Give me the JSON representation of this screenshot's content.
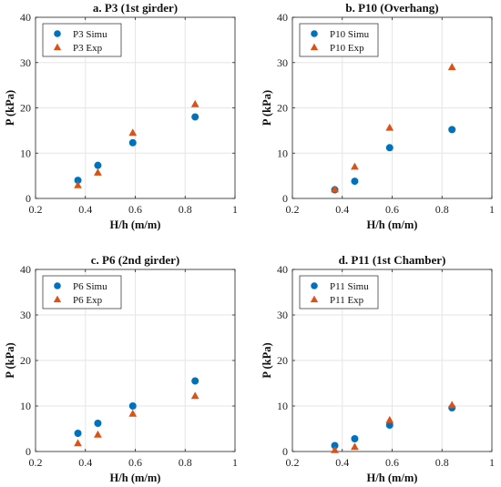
{
  "colors": {
    "simu": "#0072BD",
    "exp": "#D95319",
    "grid": "#e6e6e6",
    "axis": "#262626"
  },
  "chart_data": [
    {
      "type": "scatter",
      "title": "a. P3 (1st girder)",
      "xlabel": "H/h (m/m)",
      "ylabel": "P (kPa)",
      "xlim": [
        0.2,
        1
      ],
      "ylim": [
        0,
        40
      ],
      "xticks": [
        "0.2",
        "0.4",
        "0.6",
        "0.8",
        "1"
      ],
      "yticks": [
        "0",
        "10",
        "20",
        "30",
        "40"
      ],
      "grid": true,
      "legend_position": "top-left",
      "series": [
        {
          "name": "P3 Simu",
          "marker": "circle",
          "points": [
            [
              0.37,
              4.0
            ],
            [
              0.45,
              7.3
            ],
            [
              0.59,
              12.3
            ],
            [
              0.84,
              18.0
            ]
          ]
        },
        {
          "name": "P3 Exp",
          "marker": "triangle",
          "points": [
            [
              0.37,
              2.9
            ],
            [
              0.45,
              5.7
            ],
            [
              0.59,
              14.5
            ],
            [
              0.84,
              20.8
            ]
          ]
        }
      ]
    },
    {
      "type": "scatter",
      "title": "b. P10 (Overhang)",
      "xlabel": "H/h (m/m)",
      "ylabel": "P (kPa)",
      "xlim": [
        0.2,
        1
      ],
      "ylim": [
        0,
        40
      ],
      "xticks": [
        "0.2",
        "0.4",
        "0.6",
        "0.8",
        "1"
      ],
      "yticks": [
        "0",
        "10",
        "20",
        "30",
        "40"
      ],
      "grid": true,
      "legend_position": "top-left",
      "series": [
        {
          "name": "P10 Simu",
          "marker": "circle",
          "points": [
            [
              0.37,
              1.9
            ],
            [
              0.45,
              3.8
            ],
            [
              0.59,
              11.2
            ],
            [
              0.84,
              15.2
            ]
          ]
        },
        {
          "name": "P10 Exp",
          "marker": "triangle",
          "points": [
            [
              0.37,
              2.0
            ],
            [
              0.45,
              7.0
            ],
            [
              0.59,
              15.6
            ],
            [
              0.84,
              29.0
            ]
          ]
        }
      ]
    },
    {
      "type": "scatter",
      "title": "c. P6 (2nd girder)",
      "xlabel": "H/h (m/m)",
      "ylabel": "P (kPa)",
      "xlim": [
        0.2,
        1
      ],
      "ylim": [
        0,
        40
      ],
      "xticks": [
        "0.2",
        "0.4",
        "0.6",
        "0.8",
        "1"
      ],
      "yticks": [
        "0",
        "10",
        "20",
        "30",
        "40"
      ],
      "grid": true,
      "legend_position": "top-left",
      "series": [
        {
          "name": "P6 Simu",
          "marker": "circle",
          "points": [
            [
              0.37,
              4.0
            ],
            [
              0.45,
              6.2
            ],
            [
              0.59,
              10.0
            ],
            [
              0.84,
              15.5
            ]
          ]
        },
        {
          "name": "P6 Exp",
          "marker": "triangle",
          "points": [
            [
              0.37,
              1.8
            ],
            [
              0.45,
              3.7
            ],
            [
              0.59,
              8.3
            ],
            [
              0.84,
              12.2
            ]
          ]
        }
      ]
    },
    {
      "type": "scatter",
      "title": "d. P11 (1st Chamber)",
      "xlabel": "H/h (m/m)",
      "ylabel": "P (kPa)",
      "xlim": [
        0.2,
        1
      ],
      "ylim": [
        0,
        40
      ],
      "xticks": [
        "0.2",
        "0.4",
        "0.6",
        "0.8",
        "1"
      ],
      "yticks": [
        "0",
        "10",
        "20",
        "30",
        "40"
      ],
      "grid": true,
      "legend_position": "top-left",
      "series": [
        {
          "name": "P11 Simu",
          "marker": "circle",
          "points": [
            [
              0.37,
              1.3
            ],
            [
              0.45,
              2.8
            ],
            [
              0.59,
              5.8
            ],
            [
              0.84,
              9.6
            ]
          ]
        },
        {
          "name": "P11 Exp",
          "marker": "triangle",
          "points": [
            [
              0.37,
              0.3
            ],
            [
              0.45,
              1.0
            ],
            [
              0.59,
              6.9
            ],
            [
              0.84,
              10.2
            ]
          ]
        }
      ]
    }
  ]
}
